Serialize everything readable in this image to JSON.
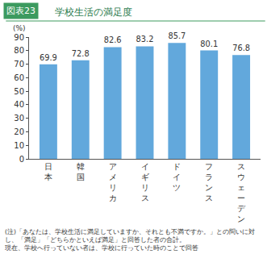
{
  "chart_data": {
    "type": "bar",
    "figure_label": "図表23",
    "title": "学校生活の満足度",
    "y_label": "(%)",
    "categories": [
      "日本",
      "韓国",
      "アメリカ",
      "イギリス",
      "ドイツ",
      "フランス",
      "スウェーデン"
    ],
    "values": [
      69.9,
      72.8,
      82.6,
      83.2,
      85.7,
      80.1,
      76.8
    ],
    "color": "#62a8dc",
    "ylim": [
      0,
      90
    ],
    "yticks": [
      0,
      10,
      20,
      30,
      40,
      50,
      60,
      70,
      80,
      90
    ],
    "grid": false,
    "data_labels": true,
    "note": [
      "(注)「あなたは、学校生活に満足していますか、それとも不満ですか。」との問いに対",
      "し、「満足」「どちらかといえば満足」と回答した者の合計。",
      "現在、学校へ行っていない者は、学校に行っていた時のことで回答"
    ]
  }
}
